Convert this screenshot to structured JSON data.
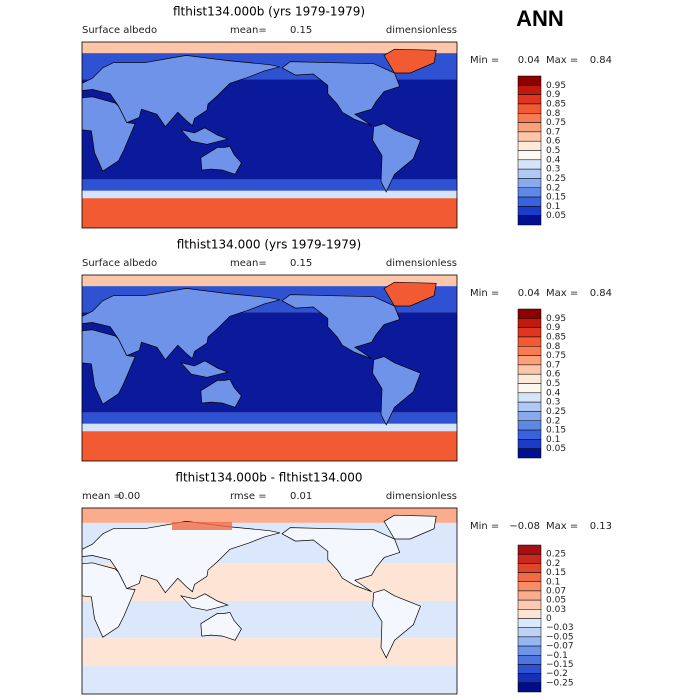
{
  "header": {
    "season": "ANN"
  },
  "panels": [
    {
      "title": "flthist134.000b (yrs 1979-1979)",
      "left_label": "Surface albedo",
      "mid_label": "mean=",
      "mid_value": "0.15",
      "right": "dimensionless",
      "min_label": "Min =",
      "min_value": "0.04",
      "max_label": "Max =",
      "max_value": "0.84",
      "colorbar": {
        "labels": [
          "0.95",
          "0.9",
          "0.85",
          "0.8",
          "0.75",
          "0.7",
          "0.6",
          "0.5",
          "0.4",
          "0.3",
          "0.25",
          "0.2",
          "0.15",
          "0.1",
          "0.05"
        ],
        "colors": [
          "#8b0000",
          "#c01a0f",
          "#e03520",
          "#f25a33",
          "#f77c55",
          "#fba07c",
          "#fdc6a8",
          "#feeadb",
          "#fff8f0",
          "#d6e4fb",
          "#b0c9f4",
          "#89abee",
          "#5e87e6",
          "#3a62dc",
          "#1a3cc9",
          "#00108f"
        ]
      }
    },
    {
      "title": "flthist134.000 (yrs 1979-1979)",
      "left_label": "Surface albedo",
      "mid_label": "mean=",
      "mid_value": "0.15",
      "right": "dimensionless",
      "min_label": "Min =",
      "min_value": "0.04",
      "max_label": "Max =",
      "max_value": "0.84",
      "colorbar": {
        "labels": [
          "0.95",
          "0.9",
          "0.85",
          "0.8",
          "0.75",
          "0.7",
          "0.6",
          "0.5",
          "0.4",
          "0.3",
          "0.25",
          "0.2",
          "0.15",
          "0.1",
          "0.05"
        ],
        "colors": [
          "#8b0000",
          "#c01a0f",
          "#e03520",
          "#f25a33",
          "#f77c55",
          "#fba07c",
          "#fdc6a8",
          "#feeadb",
          "#fff8f0",
          "#d6e4fb",
          "#b0c9f4",
          "#89abee",
          "#5e87e6",
          "#3a62dc",
          "#1a3cc9",
          "#00108f"
        ]
      }
    },
    {
      "title": "flthist134.000b - flthist134.000",
      "left_label": "mean =",
      "left_value": "0.00",
      "mid_label": "rmse =",
      "mid_value": "0.01",
      "right": "dimensionless",
      "min_label": "Min =",
      "min_value": "−0.08",
      "max_label": "Max =",
      "max_value": "0.13",
      "colorbar": {
        "labels": [
          "0.25",
          "0.2",
          "0.15",
          "0.1",
          "0.07",
          "0.05",
          "0.03",
          "0",
          "−0.03",
          "−0.05",
          "−0.07",
          "−0.1",
          "−0.15",
          "−0.2",
          "−0.25"
        ],
        "colors": [
          "#a50f15",
          "#c8281e",
          "#e0442c",
          "#f06a45",
          "#f78d68",
          "#fbac8c",
          "#fdc9b0",
          "#fee4d4",
          "#dbe8fb",
          "#bcd2f6",
          "#95b6f0",
          "#6f95e8",
          "#4d74df",
          "#2f52d2",
          "#1530b8",
          "#000c8a"
        ]
      }
    }
  ]
}
